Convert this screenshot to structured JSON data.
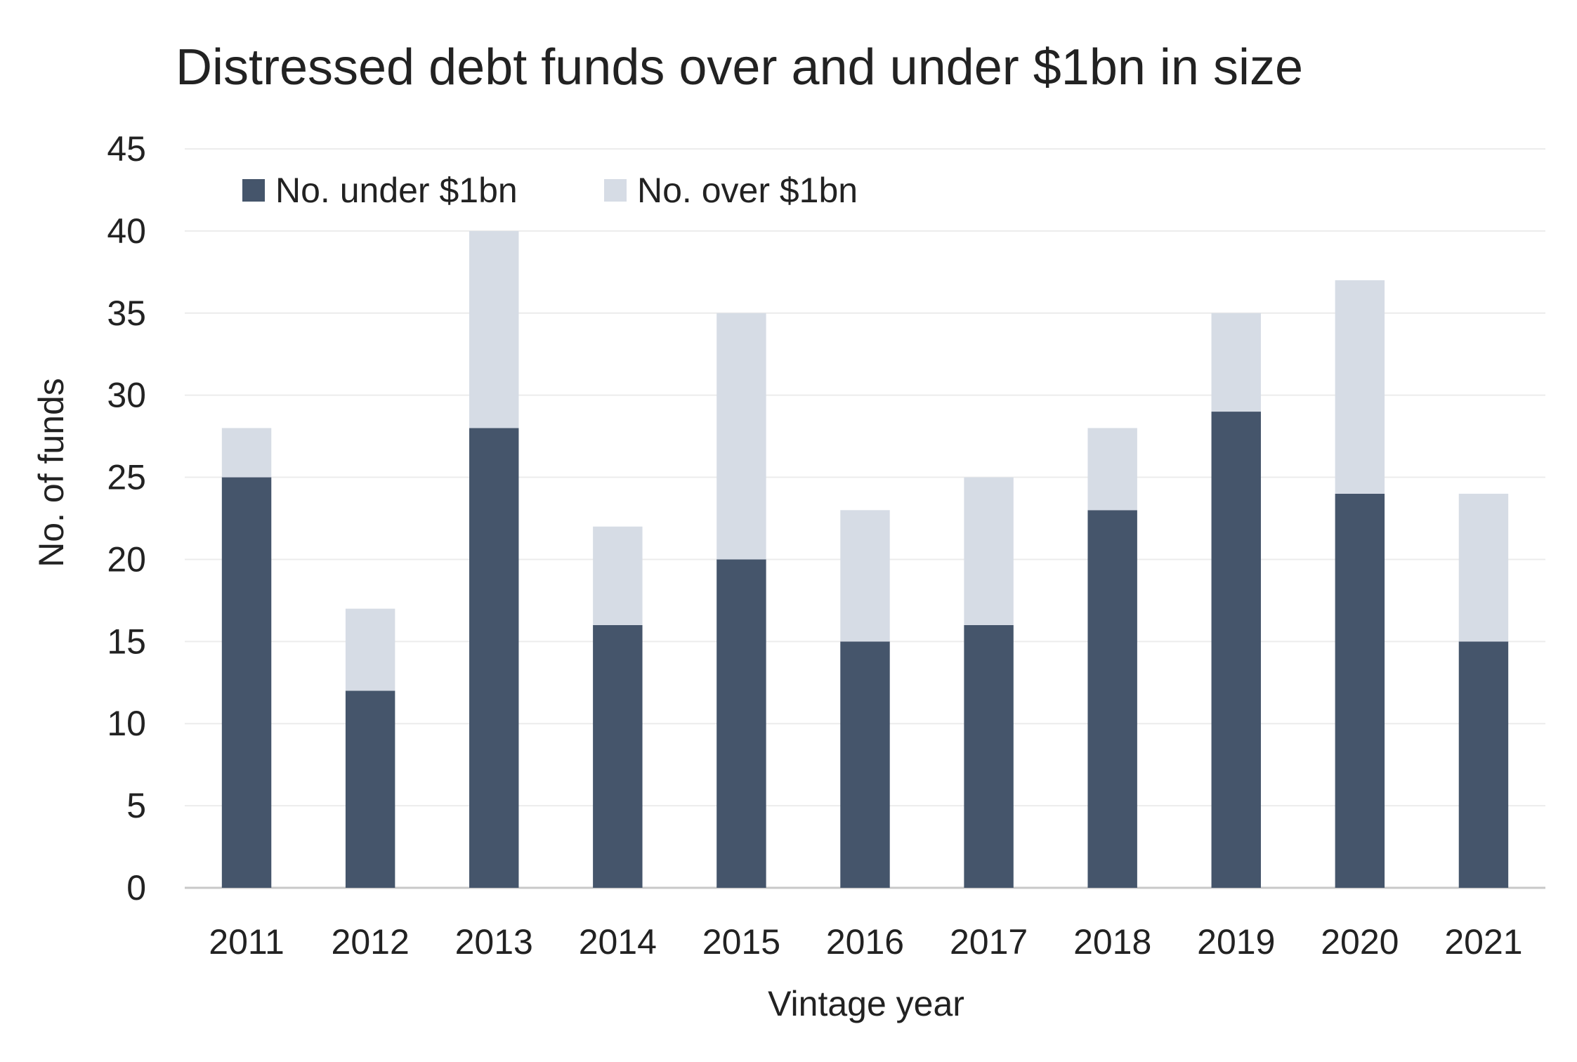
{
  "chart_data": {
    "type": "bar",
    "stacked": true,
    "title": "Distressed debt funds over and under $1bn in size",
    "xlabel": "Vintage year",
    "ylabel": "No. of funds",
    "ylim": [
      0,
      45
    ],
    "yticks": [
      0,
      5,
      10,
      15,
      20,
      25,
      30,
      35,
      40,
      45
    ],
    "grid": true,
    "legend_position": "top-left",
    "categories": [
      "2011",
      "2012",
      "2013",
      "2014",
      "2015",
      "2016",
      "2017",
      "2018",
      "2019",
      "2020",
      "2021"
    ],
    "series": [
      {
        "name": "No. under $1bn",
        "color": "#45556b",
        "values": [
          25,
          12,
          28,
          16,
          20,
          15,
          16,
          23,
          29,
          24,
          15
        ]
      },
      {
        "name": "No. over $1bn",
        "color": "#d6dce5",
        "values": [
          3,
          5,
          12,
          6,
          15,
          8,
          9,
          5,
          6,
          13,
          9
        ]
      }
    ]
  }
}
